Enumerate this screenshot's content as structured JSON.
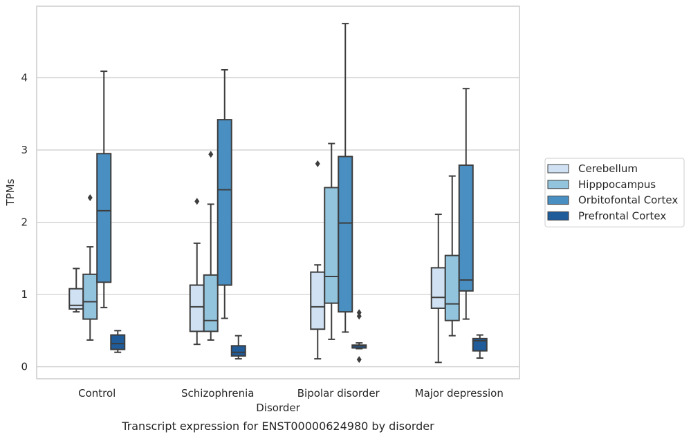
{
  "chart_data": {
    "type": "box",
    "title": "Transcript expression for ENST00000624980 by disorder",
    "xlabel": "Disorder",
    "ylabel": "TPMs",
    "categories": [
      "Control",
      "Schizophrenia",
      "Bipolar disorder",
      "Major depression"
    ],
    "ylim": [
      -0.15,
      4.98
    ],
    "yticks": [
      0,
      1,
      2,
      3,
      4
    ],
    "grid": "horizontal",
    "legend_position": "right",
    "series": [
      {
        "name": "Cerebellum",
        "color": "#cfe1f2",
        "boxes": [
          {
            "min": 0.76,
            "q1": 0.8,
            "median": 0.85,
            "q3": 1.08,
            "max": 1.36,
            "outliers": []
          },
          {
            "min": 0.31,
            "q1": 0.49,
            "median": 0.83,
            "q3": 1.13,
            "max": 1.71,
            "outliers": [
              2.29
            ]
          },
          {
            "min": 0.11,
            "q1": 0.52,
            "median": 0.83,
            "q3": 1.31,
            "max": 1.41,
            "outliers": [
              2.81
            ]
          },
          {
            "min": 0.06,
            "q1": 0.81,
            "median": 0.96,
            "q3": 1.37,
            "max": 2.11,
            "outliers": []
          }
        ]
      },
      {
        "name": "Hipppocampus",
        "color": "#93c4de",
        "boxes": [
          {
            "min": 0.37,
            "q1": 0.66,
            "median": 0.9,
            "q3": 1.28,
            "max": 1.66,
            "outliers": [
              2.34
            ]
          },
          {
            "min": 0.37,
            "q1": 0.49,
            "median": 0.64,
            "q3": 1.27,
            "max": 2.25,
            "outliers": [
              2.94
            ]
          },
          {
            "min": 0.38,
            "q1": 0.88,
            "median": 1.25,
            "q3": 2.48,
            "max": 3.09,
            "outliers": []
          },
          {
            "min": 0.43,
            "q1": 0.64,
            "median": 0.87,
            "q3": 1.54,
            "max": 2.64,
            "outliers": []
          }
        ]
      },
      {
        "name": "Orbitofontal Cortex",
        "color": "#4a8fc1",
        "boxes": [
          {
            "min": 0.82,
            "q1": 1.17,
            "median": 2.16,
            "q3": 2.95,
            "max": 4.09,
            "outliers": []
          },
          {
            "min": 0.67,
            "q1": 1.13,
            "median": 2.45,
            "q3": 3.42,
            "max": 4.11,
            "outliers": []
          },
          {
            "min": 0.48,
            "q1": 0.76,
            "median": 1.99,
            "q3": 2.91,
            "max": 4.75,
            "outliers": []
          },
          {
            "min": 0.66,
            "q1": 1.05,
            "median": 1.2,
            "q3": 2.79,
            "max": 3.85,
            "outliers": []
          }
        ]
      },
      {
        "name": "Prefrontal Cortex",
        "color": "#1f5c99",
        "boxes": [
          {
            "min": 0.2,
            "q1": 0.24,
            "median": 0.32,
            "q3": 0.44,
            "max": 0.5,
            "outliers": []
          },
          {
            "min": 0.11,
            "q1": 0.15,
            "median": 0.2,
            "q3": 0.29,
            "max": 0.43,
            "outliers": []
          },
          {
            "min": 0.25,
            "q1": 0.26,
            "median": 0.29,
            "q3": 0.3,
            "max": 0.33,
            "outliers": [
              0.75,
              0.7,
              0.1
            ]
          },
          {
            "min": 0.12,
            "q1": 0.22,
            "median": 0.36,
            "q3": 0.39,
            "max": 0.44,
            "outliers": []
          }
        ]
      }
    ]
  }
}
